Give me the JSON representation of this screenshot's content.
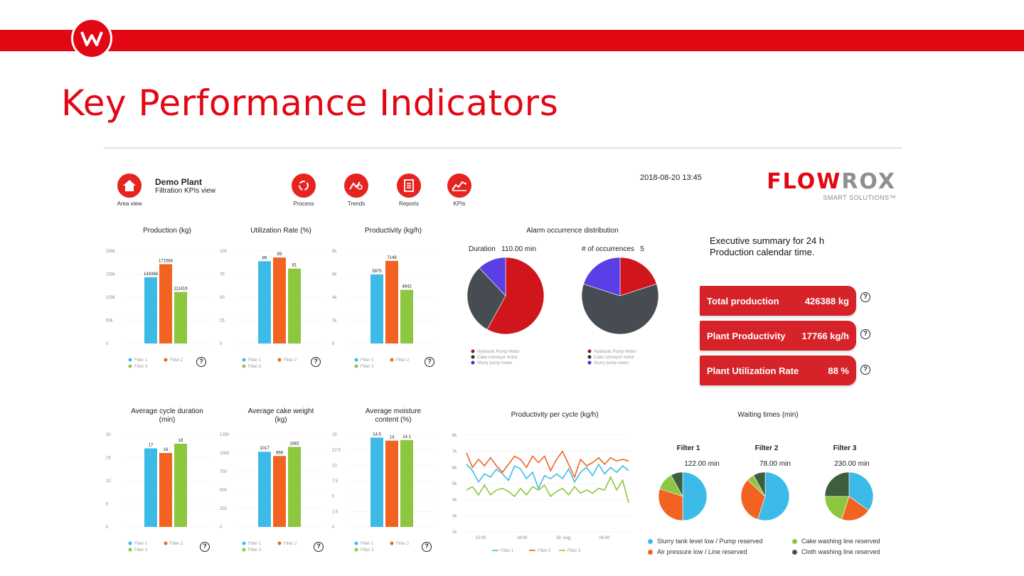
{
  "page": {
    "title": "Key Performance Indicators"
  },
  "colors": {
    "brand_red": "#e30613",
    "filter1": "#3dbbe8",
    "filter2": "#f26321",
    "filter3": "#8dc63f"
  },
  "header": {
    "area_label": "Area view",
    "plant_name": "Demo Plant",
    "plant_view": "Filtration KPIs view",
    "nav": [
      {
        "label": "Process",
        "icon": "refresh-icon"
      },
      {
        "label": "Trends",
        "icon": "trends-icon"
      },
      {
        "label": "Reports",
        "icon": "reports-icon"
      },
      {
        "label": "KPIs",
        "icon": "kpi-chart-icon"
      }
    ],
    "datetime": "2018-08-20 13:45",
    "brand_red": "FLOW",
    "brand_gray": "ROX",
    "brand_tagline": "SMART SOLUTIONS™"
  },
  "legend_labels": {
    "f1": "Filter 1",
    "f2": "Filter 2",
    "f3": "Filter 3"
  },
  "exec": {
    "title_line1": "Executive summary for 24 h",
    "title_line2": "Production calendar time.",
    "cards": [
      {
        "label": "Total production",
        "value": "426388 kg"
      },
      {
        "label": "Plant Productivity",
        "value": "17766 kg/h"
      },
      {
        "label": "Plant Utilization Rate",
        "value": "88 %"
      }
    ]
  },
  "alarm": {
    "title": "Alarm occurrence distribution",
    "duration_label": "Duration",
    "duration_value": "110.00 min",
    "count_label": "# of occurrences",
    "count_value": "5",
    "legend": [
      "Hydraulic Pump Motor",
      "Cake conveyor motor",
      "Slurry pump motor"
    ]
  },
  "waiting": {
    "title": "Waiting times (min)",
    "filters": [
      {
        "name": "Filter 1",
        "value": "122.00 min"
      },
      {
        "name": "Filter 2",
        "value": "78.00 min"
      },
      {
        "name": "Filter 3",
        "value": "230.00 min"
      }
    ],
    "legend": [
      "Slurry tank level low / Pump reserved",
      "Cake washing line reserved",
      "Air pressure low / Line reserved",
      "Cloth washing line reserved"
    ]
  },
  "chart_data": [
    {
      "id": "production",
      "type": "bar",
      "title": "Production (kg)",
      "categories": [
        "Filter 1",
        "Filter 2",
        "Filter 3"
      ],
      "values": [
        143388,
        171584,
        111416
      ],
      "value_labels": [
        "143388",
        "171584",
        "111416"
      ],
      "ylim": [
        0,
        200000
      ],
      "yticks": [
        0,
        50000,
        100000,
        150000,
        200000
      ],
      "ytick_labels": [
        "0",
        "50k",
        "100k",
        "150k",
        "200k"
      ]
    },
    {
      "id": "utilization",
      "type": "bar",
      "title": "Utilization Rate (%)",
      "categories": [
        "Filter 1",
        "Filter 2",
        "Filter 3"
      ],
      "values": [
        89,
        93,
        81
      ],
      "value_labels": [
        "89",
        "93",
        "81"
      ],
      "ylim": [
        0,
        100
      ],
      "yticks": [
        0,
        25,
        50,
        75,
        100
      ],
      "ytick_labels": [
        "0",
        "25",
        "50",
        "75",
        "100"
      ]
    },
    {
      "id": "productivity",
      "type": "bar",
      "title": "Productivity (kg/h)",
      "categories": [
        "Filter 1",
        "Filter 2",
        "Filter 3"
      ],
      "values": [
        5975,
        7149,
        4642
      ],
      "value_labels": [
        "5975",
        "7149",
        "4642"
      ],
      "ylim": [
        0,
        8000
      ],
      "yticks": [
        0,
        2000,
        4000,
        6000,
        8000
      ],
      "ytick_labels": [
        "0",
        "2k",
        "4k",
        "6k",
        "8k"
      ]
    },
    {
      "id": "cycle",
      "type": "bar",
      "title": "Average cycle duration (min)",
      "categories": [
        "Filter 1",
        "Filter 2",
        "Filter 3"
      ],
      "values": [
        17,
        16,
        18
      ],
      "value_labels": [
        "17",
        "16",
        "18"
      ],
      "ylim": [
        0,
        20
      ],
      "yticks": [
        0,
        5,
        10,
        15,
        20
      ],
      "ytick_labels": [
        "0",
        "5",
        "10",
        "15",
        "20"
      ]
    },
    {
      "id": "cake",
      "type": "bar",
      "title": "Average cake weight (kg)",
      "categories": [
        "Filter 1",
        "Filter 2",
        "Filter 3"
      ],
      "values": [
        1017,
        959,
        1082
      ],
      "value_labels": [
        "1017",
        "959",
        "1082"
      ],
      "ylim": [
        0,
        1250
      ],
      "yticks": [
        0,
        250,
        500,
        750,
        1000,
        1250
      ],
      "ytick_labels": [
        "0",
        "250",
        "500",
        "750",
        "1000",
        "1250"
      ]
    },
    {
      "id": "moisture",
      "type": "bar",
      "title": "Average moisture content (%)",
      "categories": [
        "Filter 1",
        "Filter 2",
        "Filter 3"
      ],
      "values": [
        14.5,
        14,
        14.1
      ],
      "value_labels": [
        "14.5",
        "14",
        "14.1"
      ],
      "ylim": [
        0,
        15
      ],
      "yticks": [
        0,
        2.5,
        5,
        7.5,
        10,
        12.5,
        15
      ],
      "ytick_labels": [
        "0",
        "2.5",
        "5",
        "7.5",
        "10",
        "12.5",
        "15"
      ]
    },
    {
      "id": "alarm_duration",
      "type": "pie",
      "title": "Duration",
      "labels": [
        "Hydraulic Pump Motor",
        "Cake conveyor motor",
        "Slurry pump motor"
      ],
      "values": [
        58,
        30,
        12
      ]
    },
    {
      "id": "alarm_count",
      "type": "pie",
      "title": "# of occurrences",
      "labels": [
        "Hydraulic Pump Motor",
        "Cake conveyor motor",
        "Slurry pump motor"
      ],
      "values": [
        20,
        60,
        20
      ]
    },
    {
      "id": "productivity_cycle",
      "type": "line",
      "title": "Productivity per cycle (kg/h)",
      "x_ticks": [
        "12:00",
        "18:00",
        "19. Aug",
        "06:00"
      ],
      "ylim": [
        2000,
        8000
      ],
      "yticks": [
        2000,
        3000,
        4000,
        5000,
        6000,
        7000,
        8000
      ],
      "ytick_labels": [
        "2k",
        "3k",
        "4k",
        "5k",
        "6k",
        "7k",
        "8k"
      ],
      "series": [
        {
          "name": "Filter 1",
          "values": [
            6200,
            5800,
            5100,
            5600,
            5400,
            5900,
            5600,
            5200,
            6100,
            5900,
            5300,
            5700,
            4700,
            5500,
            5300,
            5600,
            5300,
            5900,
            5100,
            5700,
            6000,
            5500,
            6200,
            5600,
            6000,
            5700,
            6100,
            5800
          ]
        },
        {
          "name": "Filter 2",
          "values": [
            6900,
            6000,
            6500,
            6100,
            6600,
            6100,
            5700,
            6200,
            6700,
            6500,
            6000,
            6700,
            6300,
            6700,
            5800,
            6500,
            7000,
            6200,
            5400,
            6500,
            6100,
            6300,
            6600,
            6200,
            6600,
            6400,
            6500,
            6400
          ]
        },
        {
          "name": "Filter 3",
          "values": [
            4600,
            4800,
            4300,
            4900,
            4300,
            4600,
            4700,
            4500,
            4200,
            4700,
            4300,
            4800,
            4600,
            4900,
            4200,
            4500,
            4700,
            4300,
            4800,
            4400,
            4600,
            4400,
            4700,
            4600,
            5400,
            4600,
            5200,
            3800
          ]
        }
      ]
    },
    {
      "id": "wait_f1",
      "type": "pie",
      "title": "Filter 1",
      "labels": [
        "Slurry tank level low / Pump reserved",
        "Air pressure low / Line reserved",
        "Cake washing line reserved",
        "Cloth washing line reserved"
      ],
      "values": [
        50,
        30,
        12,
        8
      ]
    },
    {
      "id": "wait_f2",
      "type": "pie",
      "title": "Filter 2",
      "labels": [
        "Slurry tank level low / Pump reserved",
        "Air pressure low / Line reserved",
        "Cake washing line reserved",
        "Cloth washing line reserved"
      ],
      "values": [
        55,
        32,
        5,
        8
      ]
    },
    {
      "id": "wait_f3",
      "type": "pie",
      "title": "Filter 3",
      "labels": [
        "Slurry tank level low / Pump reserved",
        "Air pressure low / Line reserved",
        "Cake washing line reserved",
        "Cloth washing line reserved"
      ],
      "values": [
        35,
        20,
        20,
        25
      ]
    }
  ]
}
